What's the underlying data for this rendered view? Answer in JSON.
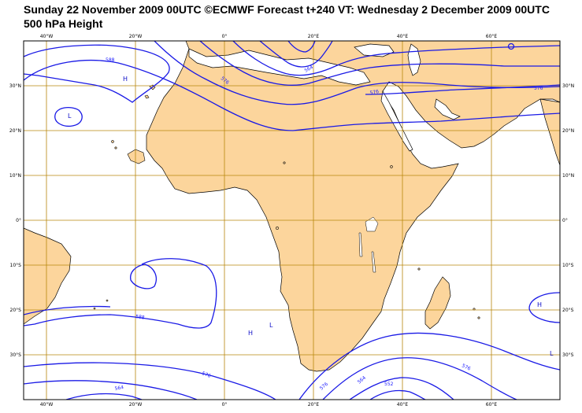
{
  "header": {
    "title_line1": "Sunday 22 November 2009 00UTC ©ECMWF Forecast t+240 VT: Wednesday 2 December 2009 00UTC",
    "title_line2": "500 hPa Height"
  },
  "axes": {
    "lon_labels": [
      "40°W",
      "20°W",
      "0°",
      "20°E",
      "40°E",
      "60°E"
    ],
    "lat_labels": [
      "30°N",
      "20°N",
      "10°N",
      "0°",
      "10°S",
      "20°S",
      "30°S"
    ]
  },
  "contour_labels": [
    "588",
    "576",
    "564",
    "576",
    "588",
    "576",
    "576",
    "564",
    "552",
    "576",
    "564",
    "576"
  ],
  "pressure_centers": [
    "H",
    "L",
    "H",
    "L",
    "H",
    "L"
  ],
  "colors": {
    "land": "#fcd59c",
    "contour": "#1a1ae6",
    "grid": "#b8860b",
    "coast": "#000000",
    "sea": "#ffffff"
  }
}
